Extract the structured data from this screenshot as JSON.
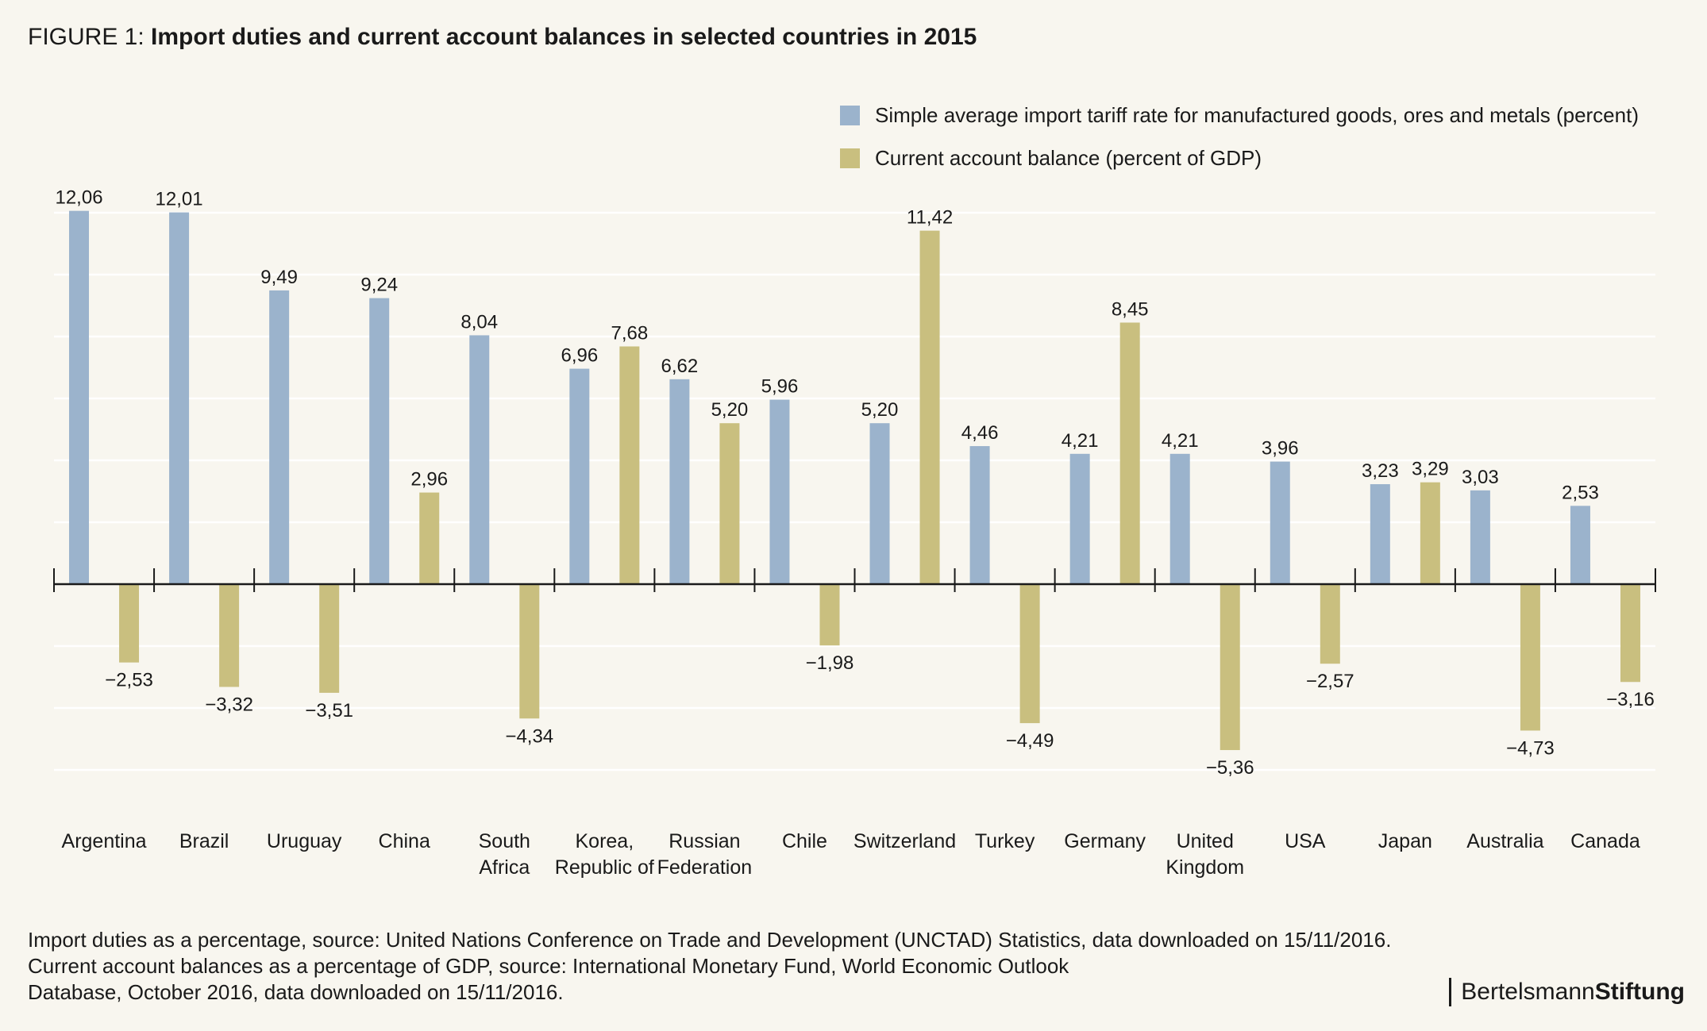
{
  "title": {
    "prefix": "FIGURE 1: ",
    "text": "Import duties and current account balances in selected countries in 2015"
  },
  "legend": [
    {
      "label": "Simple average import tariff rate for manufactured goods, ores and metals (percent)",
      "color": "#9bb3cc"
    },
    {
      "label": "Current account balance (percent of GDP)",
      "color": "#c9bf7f"
    }
  ],
  "chart_data": {
    "type": "bar",
    "categories": [
      [
        "Argentina"
      ],
      [
        "Brazil"
      ],
      [
        "Uruguay"
      ],
      [
        "China"
      ],
      [
        "South",
        "Africa"
      ],
      [
        "Korea,",
        "Republic of"
      ],
      [
        "Russian",
        "Federation"
      ],
      [
        "Chile"
      ],
      [
        "Switzerland"
      ],
      [
        "Turkey"
      ],
      [
        "Germany"
      ],
      [
        "United",
        "Kingdom"
      ],
      [
        "USA"
      ],
      [
        "Japan"
      ],
      [
        "Australia"
      ],
      [
        "Canada"
      ]
    ],
    "series": [
      {
        "name": "Simple average import tariff rate for manufactured goods, ores and metals (percent)",
        "color": "#9bb3cc",
        "values": [
          12.06,
          12.01,
          9.49,
          9.24,
          8.04,
          6.96,
          6.62,
          5.96,
          5.2,
          4.46,
          4.21,
          4.21,
          3.96,
          3.23,
          3.03,
          2.53
        ],
        "labels": [
          "12,06",
          "12,01",
          "9,49",
          "9,24",
          "8,04",
          "6,96",
          "6,62",
          "5,96",
          "5,20",
          "4,46",
          "4,21",
          "4,21",
          "3,96",
          "3,23",
          "3,03",
          "2,53"
        ]
      },
      {
        "name": "Current account balance (percent of GDP)",
        "color": "#c9bf7f",
        "values": [
          -2.53,
          -3.32,
          -3.51,
          2.96,
          -4.34,
          7.68,
          5.2,
          -1.98,
          11.42,
          -4.49,
          8.45,
          -5.36,
          -2.57,
          3.29,
          -4.73,
          -3.16
        ],
        "labels": [
          "−2,53",
          "−3,32",
          "−3,51",
          "2,96",
          "−4,34",
          "7,68",
          "5,20",
          "−1,98",
          "11,42",
          "−4,49",
          "8,45",
          "−5,36",
          "−2,57",
          "3,29",
          "−4,73",
          "−3,16"
        ]
      }
    ],
    "ylim": [
      -6,
      12
    ],
    "grid_step": 2,
    "grid": true,
    "legend_position": "top-right"
  },
  "notes": [
    "Import duties as a percentage, source: United Nations Conference on Trade and Development (UNCTAD) Statistics, data downloaded on 15/11/2016.",
    "Current account balances as a percentage of GDP, source: International Monetary Fund, World Economic Outlook",
    "Database, October 2016, data downloaded on 15/11/2016."
  ],
  "brand": {
    "part1": "Bertelsmann",
    "part2": "Stiftung"
  }
}
